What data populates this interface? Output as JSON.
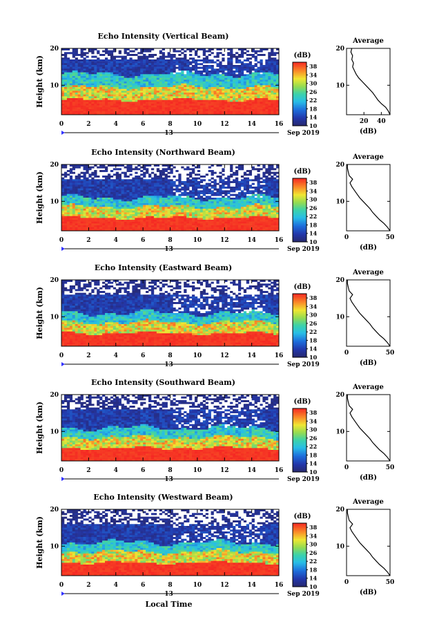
{
  "chart_data": [
    {
      "type": "heatmap",
      "title": "Echo Intensity (Vertical Beam)",
      "ylabel": "Height (km)",
      "x_ticks": [
        "0",
        "2",
        "4",
        "6",
        "8",
        "10",
        "12",
        "14",
        "16"
      ],
      "y_ticks": [
        "10",
        "20"
      ],
      "xlim": [
        0,
        16
      ],
      "ylim": [
        2,
        20
      ],
      "date_label": "13",
      "month_label": "Sep 2019",
      "layers_km": {
        "strong_top": 6,
        "moderate_top": 9.5,
        "weak_top": 13,
        "sparse_top": 17
      },
      "average_profile": {
        "title": "Average",
        "xlabel": "(dB)",
        "x_ticks": [
          "20",
          "40"
        ],
        "xlim": [
          0,
          50
        ],
        "y_ticks": [
          "10",
          "20"
        ],
        "points": [
          [
            50,
            2
          ],
          [
            48,
            3
          ],
          [
            45,
            4
          ],
          [
            40,
            5
          ],
          [
            36,
            6
          ],
          [
            33,
            7
          ],
          [
            30,
            8
          ],
          [
            26,
            9
          ],
          [
            22,
            10
          ],
          [
            18,
            11
          ],
          [
            14,
            12
          ],
          [
            11,
            13
          ],
          [
            9,
            14
          ],
          [
            7,
            15
          ],
          [
            8,
            16
          ],
          [
            6,
            17
          ],
          [
            7,
            18
          ],
          [
            5,
            19
          ],
          [
            6,
            20
          ]
        ]
      }
    },
    {
      "type": "heatmap",
      "title": "Echo Intensity (Northward Beam)",
      "ylabel": "Height (km)",
      "x_ticks": [
        "0",
        "2",
        "4",
        "6",
        "8",
        "10",
        "12",
        "14",
        "16"
      ],
      "y_ticks": [
        "10",
        "20"
      ],
      "xlim": [
        0,
        16
      ],
      "ylim": [
        2,
        20
      ],
      "date_label": "13",
      "month_label": "Sep 2019",
      "layers_km": {
        "strong_top": 5.5,
        "moderate_top": 8.5,
        "weak_top": 11,
        "sparse_top": 16
      },
      "average_profile": {
        "title": "Average",
        "xlabel": "(dB)",
        "x_ticks": [
          "0",
          "50"
        ],
        "xlim": [
          0,
          50
        ],
        "y_ticks": [
          "10",
          "20"
        ],
        "points": [
          [
            50,
            2
          ],
          [
            47,
            3
          ],
          [
            43,
            4
          ],
          [
            38,
            5
          ],
          [
            34,
            6
          ],
          [
            30,
            7
          ],
          [
            27,
            8
          ],
          [
            23,
            9
          ],
          [
            19,
            10
          ],
          [
            15,
            11
          ],
          [
            12,
            12
          ],
          [
            9,
            13
          ],
          [
            6,
            14
          ],
          [
            4,
            15
          ],
          [
            7,
            16
          ],
          [
            3,
            17
          ],
          [
            2,
            18
          ],
          [
            1,
            19
          ],
          [
            1,
            20
          ]
        ]
      }
    },
    {
      "type": "heatmap",
      "title": "Echo Intensity (Eastward Beam)",
      "ylabel": "Height (km)",
      "x_ticks": [
        "0",
        "2",
        "4",
        "6",
        "8",
        "10",
        "12",
        "14",
        "16"
      ],
      "y_ticks": [
        "10",
        "20"
      ],
      "xlim": [
        0,
        16
      ],
      "ylim": [
        2,
        20
      ],
      "date_label": "13",
      "month_label": "Sep 2019",
      "layers_km": {
        "strong_top": 5.5,
        "moderate_top": 8.5,
        "weak_top": 11,
        "sparse_top": 16
      },
      "average_profile": {
        "title": "Average",
        "xlabel": "(dB)",
        "x_ticks": [
          "0",
          "50"
        ],
        "xlim": [
          0,
          50
        ],
        "y_ticks": [
          "10",
          "20"
        ],
        "points": [
          [
            50,
            2
          ],
          [
            47,
            3
          ],
          [
            43,
            4
          ],
          [
            38,
            5
          ],
          [
            34,
            6
          ],
          [
            30,
            7
          ],
          [
            27,
            8
          ],
          [
            23,
            9
          ],
          [
            19,
            10
          ],
          [
            15,
            11
          ],
          [
            12,
            12
          ],
          [
            9,
            13
          ],
          [
            6,
            14
          ],
          [
            4,
            15
          ],
          [
            7,
            16
          ],
          [
            3,
            17
          ],
          [
            2,
            18
          ],
          [
            1,
            19
          ],
          [
            1,
            20
          ]
        ]
      }
    },
    {
      "type": "heatmap",
      "title": "Echo Intensity (Southward Beam)",
      "ylabel": "Height (km)",
      "x_ticks": [
        "0",
        "2",
        "4",
        "6",
        "8",
        "10",
        "12",
        "14",
        "16"
      ],
      "y_ticks": [
        "10",
        "20"
      ],
      "xlim": [
        0,
        16
      ],
      "ylim": [
        2,
        20
      ],
      "date_label": "13",
      "month_label": "Sep 2019",
      "layers_km": {
        "strong_top": 5.5,
        "moderate_top": 8.5,
        "weak_top": 11,
        "sparse_top": 16
      },
      "average_profile": {
        "title": "Average",
        "xlabel": "(dB)",
        "x_ticks": [
          "0",
          "50"
        ],
        "xlim": [
          0,
          50
        ],
        "y_ticks": [
          "10",
          "20"
        ],
        "points": [
          [
            50,
            2
          ],
          [
            47,
            3
          ],
          [
            43,
            4
          ],
          [
            38,
            5
          ],
          [
            34,
            6
          ],
          [
            30,
            7
          ],
          [
            27,
            8
          ],
          [
            23,
            9
          ],
          [
            19,
            10
          ],
          [
            15,
            11
          ],
          [
            12,
            12
          ],
          [
            9,
            13
          ],
          [
            6,
            14
          ],
          [
            4,
            15
          ],
          [
            7,
            16
          ],
          [
            3,
            17
          ],
          [
            2,
            18
          ],
          [
            1,
            19
          ],
          [
            1,
            20
          ]
        ]
      }
    },
    {
      "type": "heatmap",
      "title": "Echo Intensity (Westward Beam)",
      "ylabel": "Height (km)",
      "x_ticks": [
        "0",
        "2",
        "4",
        "6",
        "8",
        "10",
        "12",
        "14",
        "16"
      ],
      "y_ticks": [
        "10",
        "20"
      ],
      "xlim": [
        0,
        16
      ],
      "ylim": [
        2,
        20
      ],
      "date_label": "13",
      "month_label": "Sep 2019",
      "layers_km": {
        "strong_top": 5.5,
        "moderate_top": 8.5,
        "weak_top": 11,
        "sparse_top": 16
      },
      "average_profile": {
        "title": "Average",
        "xlabel": "(dB)",
        "x_ticks": [
          "0",
          "50"
        ],
        "xlim": [
          0,
          50
        ],
        "y_ticks": [
          "10",
          "20"
        ],
        "points": [
          [
            50,
            2
          ],
          [
            47,
            3
          ],
          [
            43,
            4
          ],
          [
            38,
            5
          ],
          [
            34,
            6
          ],
          [
            30,
            7
          ],
          [
            27,
            8
          ],
          [
            23,
            9
          ],
          [
            19,
            10
          ],
          [
            15,
            11
          ],
          [
            12,
            12
          ],
          [
            9,
            13
          ],
          [
            6,
            14
          ],
          [
            4,
            15
          ],
          [
            7,
            16
          ],
          [
            3,
            17
          ],
          [
            2,
            18
          ],
          [
            1,
            19
          ],
          [
            1,
            20
          ]
        ]
      }
    }
  ],
  "colorbar": {
    "label": "(dB)",
    "ticks": [
      "10",
      "14",
      "18",
      "22",
      "26",
      "30",
      "34",
      "38"
    ],
    "range": [
      10,
      40
    ]
  },
  "x_axis_label": "Local Time"
}
